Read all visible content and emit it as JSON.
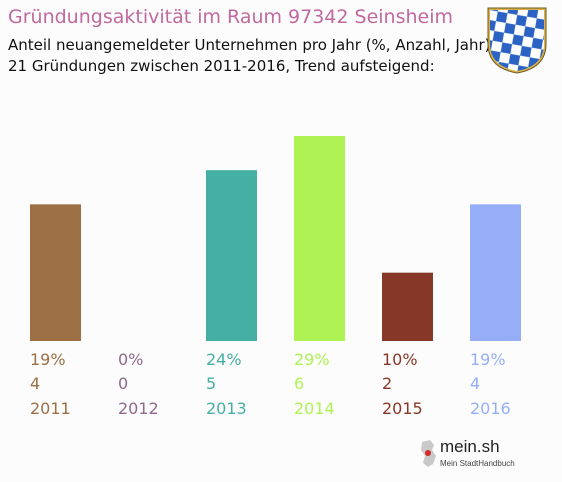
{
  "header": {
    "title": "Gründungsaktivität im Raum 97342 Seinsheim",
    "subtitle_line1": "Anteil neuangemeldeter Unternehmen pro Jahr (%, Anzahl, Jahr)",
    "subtitle_line2": "21 Gründungen zwischen 2011-2016, Trend aufsteigend:"
  },
  "crest": {
    "icon": "bavarian-coat-of-arms-icon"
  },
  "footer": {
    "brand": "mein.sh",
    "tagline": "Mein StadtHandbuch",
    "icon": "germany-map-icon"
  },
  "chart_data": {
    "type": "bar",
    "categories": [
      "2011",
      "2012",
      "2013",
      "2014",
      "2015",
      "2016"
    ],
    "values": [
      4,
      0,
      5,
      6,
      2,
      4
    ],
    "percent_labels": [
      "19%",
      "0%",
      "24%",
      "29%",
      "10%",
      "19%"
    ],
    "count_labels": [
      "4",
      "0",
      "5",
      "6",
      "2",
      "4"
    ],
    "colors": [
      "#9c6f45",
      "#8e6b8a",
      "#46afa3",
      "#aef253",
      "#873727",
      "#96aef8"
    ],
    "ylim": [
      0,
      6
    ],
    "grid": false
  }
}
